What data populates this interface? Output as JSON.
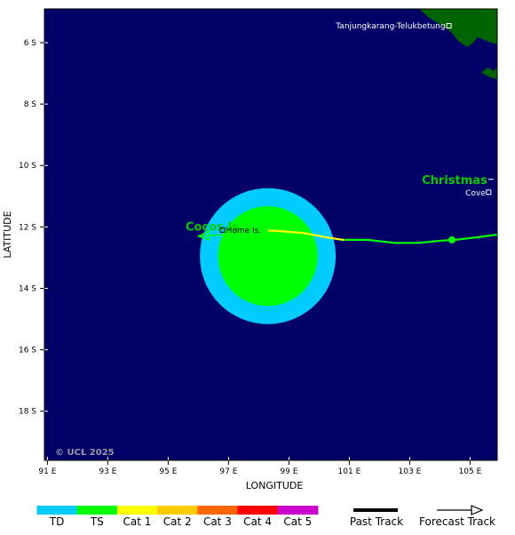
{
  "map": {
    "lon_range": [
      90.9,
      105.9
    ],
    "lat_range": [
      -4.9,
      -19.6
    ],
    "ocean_color": "#000066",
    "land_color": "#006400",
    "copyright": "© UCL 2025",
    "x_axis_label": "LONGITUDE",
    "y_axis_label": "LATITUDE",
    "lon_ticks": [
      {
        "value": 91,
        "label": "91 E"
      },
      {
        "value": 93,
        "label": "93 E"
      },
      {
        "value": 95,
        "label": "95 E"
      },
      {
        "value": 97,
        "label": "97 E"
      },
      {
        "value": 99,
        "label": "99 E"
      },
      {
        "value": 101,
        "label": "101 E"
      },
      {
        "value": 103,
        "label": "103 E"
      },
      {
        "value": 105,
        "label": "105 E"
      }
    ],
    "lat_ticks": [
      {
        "value": -6,
        "label": "6 S"
      },
      {
        "value": -8,
        "label": "8 S"
      },
      {
        "value": -10,
        "label": "10 S"
      },
      {
        "value": -12,
        "label": "12 S"
      },
      {
        "value": -14,
        "label": "14 S"
      },
      {
        "value": -16,
        "label": "16 S"
      },
      {
        "value": -18,
        "label": "18 S"
      }
    ]
  },
  "places": {
    "tanjung": {
      "name": "Tanjungkarang-Telukbetung",
      "lon": 104.3,
      "lat": -5.45
    },
    "christmas_island": {
      "name": "Christmas",
      "lon": 105.6,
      "lat": -10.45
    },
    "cove": {
      "name": "Cove",
      "lon": 105.6,
      "lat": -10.45
    },
    "cocos_islands": {
      "name": "Cocos Is",
      "lon": 96.4,
      "lat": -12.0
    },
    "home_island": {
      "name": "Home Is.",
      "lon": 96.8,
      "lat": -12.1
    }
  },
  "storm": {
    "center": {
      "lon": 98.3,
      "lat": -12.95
    },
    "td_radius_deg": 2.25,
    "ts_radius_deg": 1.65,
    "td_color": "#00ccff",
    "ts_color": "#00ff00",
    "past_track": [
      {
        "lon": 105.9,
        "lat": -12.25,
        "cat": "TS"
      },
      {
        "lon": 105.3,
        "lat": -12.33,
        "cat": "TS"
      },
      {
        "lon": 104.5,
        "lat": -12.42,
        "cat": "TS"
      },
      {
        "lon": 104.0,
        "lat": -12.45,
        "cat": "TS"
      },
      {
        "lon": 103.3,
        "lat": -12.52,
        "cat": "TS"
      },
      {
        "lon": 102.5,
        "lat": -12.52,
        "cat": "TS"
      },
      {
        "lon": 101.6,
        "lat": -12.42,
        "cat": "TS"
      },
      {
        "lon": 100.8,
        "lat": -12.42,
        "cat": "TS"
      },
      {
        "lon": 100.3,
        "lat": -12.35,
        "cat": "Cat 1"
      },
      {
        "lon": 99.5,
        "lat": -12.2,
        "cat": "Cat 1"
      },
      {
        "lon": 98.5,
        "lat": -12.12,
        "cat": "Cat 1"
      },
      {
        "lon": 98.3,
        "lat": -12.12,
        "cat": "Cat 1"
      }
    ],
    "forecast_track": [
      {
        "lon": 98.3,
        "lat": -12.12
      },
      {
        "lon": 97.0,
        "lat": -12.25
      },
      {
        "lon": 96.0,
        "lat": -12.3
      }
    ],
    "current_position": {
      "lon": 104.4,
      "lat": -12.42
    }
  },
  "legend": {
    "categories": [
      {
        "label": "TD",
        "color": "#00ccff"
      },
      {
        "label": "TS",
        "color": "#00ff00"
      },
      {
        "label": "Cat 1",
        "color": "#ffff00"
      },
      {
        "label": "Cat 2",
        "color": "#ffcc00"
      },
      {
        "label": "Cat 3",
        "color": "#ff6600"
      },
      {
        "label": "Cat 4",
        "color": "#ff0000"
      },
      {
        "label": "Cat 5",
        "color": "#cc00cc"
      }
    ],
    "past_track_label": "Past Track",
    "forecast_track_label": "Forecast Track"
  }
}
